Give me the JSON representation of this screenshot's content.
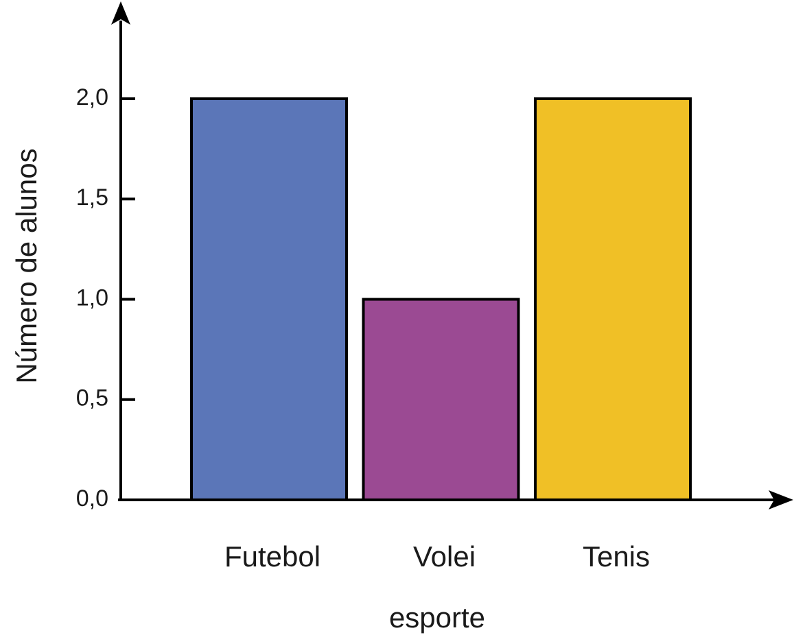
{
  "chart_data": {
    "type": "bar",
    "categories": [
      "Futebol",
      "Volei",
      "Tenis"
    ],
    "values": [
      2.0,
      1.0,
      2.0
    ],
    "colors": [
      "#5b76b8",
      "#9b4a93",
      "#f0c026"
    ],
    "xlabel": "esporte",
    "ylabel": "Número de alunos",
    "ylim": [
      0,
      2.0
    ],
    "yticks": [
      {
        "value": 0,
        "label": "0,0"
      },
      {
        "value": 0.5,
        "label": "0,5"
      },
      {
        "value": 1.0,
        "label": "1,0"
      },
      {
        "value": 1.5,
        "label": "1,5"
      },
      {
        "value": 2.0,
        "label": "2,0"
      }
    ],
    "grid": false,
    "legend": "none"
  }
}
